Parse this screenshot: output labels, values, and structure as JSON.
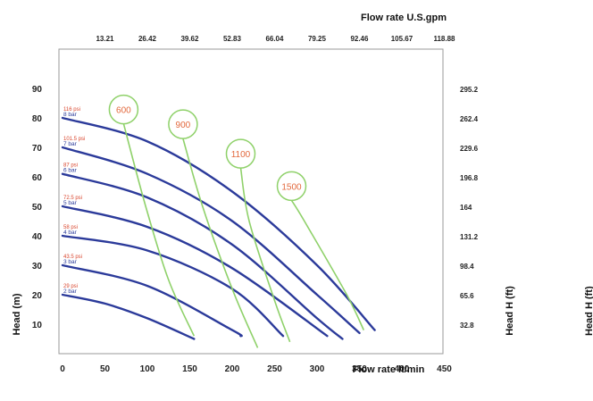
{
  "chart_data": {
    "type": "line",
    "xlabel": "Flow rate  lt/min",
    "x2label": "Flow rate U.S.gpm",
    "ylabel": "Head (m)",
    "y2label": "Head H (ft)",
    "xlim": [
      0,
      450
    ],
    "ylim": [
      0,
      100
    ],
    "x_ticks": [
      "0",
      "50",
      "100",
      "150",
      "200",
      "250",
      "300",
      "350",
      "400",
      "450"
    ],
    "y_ticks": [
      "10",
      "20",
      "30",
      "40",
      "50",
      "60",
      "70",
      "80",
      "90"
    ],
    "x2_ticks": [
      "13.21",
      "26.42",
      "39.62",
      "52.83",
      "66.04",
      "79.25",
      "92.46",
      "105.67",
      "118.88"
    ],
    "y2_ticks": [
      "32.8",
      "65.6",
      "98.4",
      "131.2",
      "164",
      "196.8",
      "229.6",
      "262.4",
      "295.2"
    ],
    "grid": false,
    "colors": {
      "pressure": "#2b3a9a",
      "speed": "#8fd16a",
      "label_orange": "#e2683c",
      "label_red": "#d9462e"
    },
    "series": [
      {
        "name": "116 psi 8 bar",
        "psi_label": "116 psi",
        "bar_label": "8 bar",
        "x": [
          0,
          100,
          200,
          300,
          368
        ],
        "y": [
          80,
          72,
          55,
          30,
          8
        ]
      },
      {
        "name": "101.5 psi 7 bar",
        "psi_label": "101.5 psi",
        "bar_label": "7 bar",
        "x": [
          0,
          100,
          200,
          300,
          350
        ],
        "y": [
          70,
          61,
          45,
          20,
          7
        ]
      },
      {
        "name": "87 psi 6 bar",
        "psi_label": "87 psi",
        "bar_label": "6 bar",
        "x": [
          0,
          100,
          200,
          300,
          330
        ],
        "y": [
          61,
          53,
          37,
          12,
          5
        ]
      },
      {
        "name": "72.5 psi 5 bar",
        "psi_label": "72.5 psi",
        "bar_label": "5 bar",
        "x": [
          0,
          100,
          200,
          312
        ],
        "y": [
          50,
          43,
          29,
          6
        ]
      },
      {
        "name": "58 psi 4 bar",
        "psi_label": "58 psi",
        "bar_label": "4 bar",
        "x": [
          0,
          100,
          200,
          260
        ],
        "y": [
          40,
          35,
          22,
          6
        ]
      },
      {
        "name": "43.5 psi 3 bar",
        "psi_label": "43.5 psi",
        "bar_label": "3 bar",
        "x": [
          0,
          100,
          200,
          210
        ],
        "y": [
          30,
          23,
          8,
          6
        ]
      },
      {
        "name": "29 psi 2 bar",
        "psi_label": "29 psi",
        "bar_label": "2 bar",
        "x": [
          0,
          50,
          100,
          155
        ],
        "y": [
          20,
          17,
          12,
          5
        ]
      }
    ],
    "speed_curves": [
      {
        "name": "600",
        "x": [
          72,
          98,
          125,
          155
        ],
        "y": [
          78,
          50,
          25,
          6
        ]
      },
      {
        "name": "900",
        "x": [
          142,
          165,
          200,
          230
        ],
        "y": [
          73,
          50,
          22,
          2
        ]
      },
      {
        "name": "1100",
        "x": [
          210,
          220,
          250,
          268
        ],
        "y": [
          63,
          45,
          18,
          4
        ]
      },
      {
        "name": "1500",
        "x": [
          270,
          285,
          335,
          355
        ],
        "y": [
          52,
          45,
          20,
          8
        ]
      }
    ]
  }
}
